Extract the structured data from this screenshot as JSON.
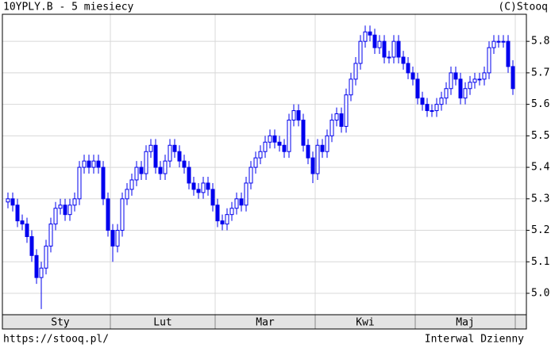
{
  "chart_data": {
    "type": "candlestick",
    "title": "10YPLY.B - 5 miesiecy",
    "source": "(C)Stooq",
    "footer_left": "https://stooq.pl/",
    "footer_right": "Interwal Dzienny",
    "color": "#0000ee",
    "grid": true,
    "ylim": [
      4.932,
      5.886
    ],
    "yticks": [
      {
        "value": 5,
        "label": "5.0"
      },
      5.1,
      5.2,
      5.3,
      5.4,
      5.5,
      5.6,
      5.7,
      5.8
    ],
    "months": [
      "Sty",
      "Lut",
      "Mar",
      "Kwi",
      "Maj"
    ],
    "month_starts": [
      1,
      22,
      44,
      65,
      86,
      107
    ],
    "open": [
      5.29,
      5.3,
      5.28,
      5.23,
      5.22,
      5.18,
      5.12,
      5.05,
      5.08,
      5.15,
      5.22,
      5.27,
      5.28,
      5.25,
      5.28,
      5.3,
      5.4,
      5.42,
      5.4,
      5.42,
      5.4,
      5.3,
      5.2,
      5.15,
      5.2,
      5.3,
      5.33,
      5.36,
      5.4,
      5.38,
      5.45,
      5.47,
      5.4,
      5.38,
      5.42,
      5.47,
      5.45,
      5.42,
      5.4,
      5.35,
      5.33,
      5.32,
      5.35,
      5.33,
      5.28,
      5.23,
      5.22,
      5.25,
      5.27,
      5.3,
      5.28,
      5.35,
      5.4,
      5.43,
      5.45,
      5.48,
      5.5,
      5.48,
      5.47,
      5.45,
      5.55,
      5.58,
      5.55,
      5.47,
      5.43,
      5.38,
      5.47,
      5.45,
      5.5,
      5.55,
      5.57,
      5.53,
      5.63,
      5.68,
      5.73,
      5.8,
      5.83,
      5.82,
      5.78,
      5.8,
      5.75,
      5.75,
      5.8,
      5.75,
      5.73,
      5.7,
      5.68,
      5.62,
      5.6,
      5.58,
      5.58,
      5.6,
      5.62,
      5.65,
      5.7,
      5.68,
      5.62,
      5.65,
      5.67,
      5.68,
      5.68,
      5.7,
      5.78,
      5.8,
      5.8,
      5.8,
      5.72
    ],
    "high": [
      5.32,
      5.32,
      5.3,
      5.25,
      5.24,
      5.2,
      5.14,
      5.1,
      5.17,
      5.24,
      5.29,
      5.3,
      5.3,
      5.3,
      5.32,
      5.42,
      5.44,
      5.44,
      5.44,
      5.44,
      5.42,
      5.32,
      5.22,
      5.22,
      5.32,
      5.35,
      5.38,
      5.42,
      5.42,
      5.47,
      5.49,
      5.49,
      5.42,
      5.44,
      5.49,
      5.49,
      5.47,
      5.44,
      5.42,
      5.37,
      5.35,
      5.37,
      5.37,
      5.35,
      5.3,
      5.25,
      5.27,
      5.29,
      5.32,
      5.32,
      5.37,
      5.42,
      5.45,
      5.47,
      5.5,
      5.52,
      5.52,
      5.5,
      5.49,
      5.57,
      5.6,
      5.6,
      5.57,
      5.49,
      5.45,
      5.49,
      5.49,
      5.52,
      5.57,
      5.59,
      5.59,
      5.65,
      5.7,
      5.75,
      5.82,
      5.85,
      5.85,
      5.84,
      5.82,
      5.82,
      5.77,
      5.82,
      5.82,
      5.77,
      5.75,
      5.72,
      5.7,
      5.64,
      5.62,
      5.6,
      5.62,
      5.64,
      5.67,
      5.72,
      5.72,
      5.7,
      5.67,
      5.69,
      5.7,
      5.7,
      5.72,
      5.8,
      5.82,
      5.82,
      5.82,
      5.82,
      5.74
    ],
    "low": [
      5.27,
      5.26,
      5.21,
      5.2,
      5.16,
      5.1,
      5.03,
      4.95,
      5.06,
      5.13,
      5.2,
      5.25,
      5.23,
      5.23,
      5.26,
      5.28,
      5.38,
      5.38,
      5.38,
      5.38,
      5.28,
      5.18,
      5.1,
      5.13,
      5.18,
      5.28,
      5.31,
      5.34,
      5.36,
      5.36,
      5.43,
      5.38,
      5.36,
      5.36,
      5.4,
      5.43,
      5.4,
      5.38,
      5.33,
      5.31,
      5.3,
      5.3,
      5.31,
      5.26,
      5.21,
      5.2,
      5.2,
      5.23,
      5.25,
      5.26,
      5.26,
      5.33,
      5.38,
      5.41,
      5.43,
      5.46,
      5.46,
      5.45,
      5.43,
      5.43,
      5.53,
      5.53,
      5.45,
      5.41,
      5.35,
      5.36,
      5.43,
      5.43,
      5.48,
      5.53,
      5.51,
      5.51,
      5.61,
      5.66,
      5.71,
      5.78,
      5.8,
      5.76,
      5.76,
      5.73,
      5.73,
      5.73,
      5.73,
      5.71,
      5.68,
      5.66,
      5.6,
      5.58,
      5.56,
      5.56,
      5.56,
      5.58,
      5.6,
      5.63,
      5.66,
      5.6,
      5.6,
      5.63,
      5.65,
      5.66,
      5.66,
      5.68,
      5.76,
      5.78,
      5.78,
      5.7,
      5.63
    ],
    "close": [
      5.3,
      5.28,
      5.23,
      5.22,
      5.18,
      5.12,
      5.05,
      5.08,
      5.15,
      5.22,
      5.27,
      5.28,
      5.25,
      5.28,
      5.3,
      5.4,
      5.42,
      5.4,
      5.42,
      5.4,
      5.3,
      5.2,
      5.15,
      5.2,
      5.3,
      5.33,
      5.36,
      5.4,
      5.38,
      5.45,
      5.47,
      5.4,
      5.38,
      5.42,
      5.47,
      5.45,
      5.42,
      5.4,
      5.35,
      5.33,
      5.32,
      5.35,
      5.33,
      5.28,
      5.23,
      5.22,
      5.25,
      5.27,
      5.3,
      5.28,
      5.35,
      5.4,
      5.43,
      5.45,
      5.48,
      5.5,
      5.48,
      5.47,
      5.45,
      5.55,
      5.58,
      5.55,
      5.47,
      5.43,
      5.38,
      5.47,
      5.45,
      5.5,
      5.55,
      5.57,
      5.53,
      5.63,
      5.68,
      5.73,
      5.8,
      5.83,
      5.82,
      5.78,
      5.8,
      5.75,
      5.75,
      5.8,
      5.75,
      5.73,
      5.7,
      5.68,
      5.62,
      5.6,
      5.58,
      5.58,
      5.6,
      5.62,
      5.65,
      5.7,
      5.68,
      5.62,
      5.65,
      5.67,
      5.68,
      5.68,
      5.7,
      5.78,
      5.8,
      5.8,
      5.8,
      5.72,
      5.65
    ]
  }
}
